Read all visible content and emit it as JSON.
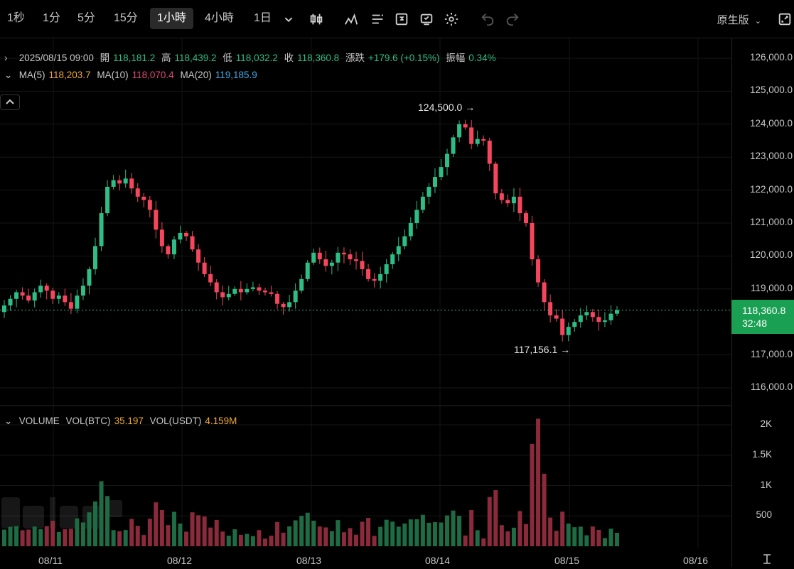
{
  "toolbar": {
    "timeframes": [
      "1秒",
      "1分",
      "5分",
      "15分",
      "1小時",
      "4小時",
      "1日"
    ],
    "active_timeframe": "1小時",
    "version_label": "原生版",
    "icons": [
      "chevron-down-icon",
      "candle-type-icon",
      "indicators-icon",
      "drawing-tools-icon",
      "replay-icon",
      "templates-icon",
      "settings-icon",
      "undo-icon",
      "redo-icon",
      "fullscreen-icon"
    ]
  },
  "ohlc_bar": {
    "datetime": "2025/08/15 09:00",
    "open_label": "開",
    "open": "118,181.2",
    "high_label": "高",
    "high": "118,439.2",
    "low_label": "低",
    "low": "118,032.2",
    "close_label": "收",
    "close": "118,360.8",
    "change_label": "漲跌",
    "change": "+179.6 (+0.15%)",
    "amplitude_label": "振幅",
    "amplitude": "0.34%"
  },
  "ma_bar": {
    "ma5_label": "MA(5)",
    "ma5": "118,203.7",
    "ma10_label": "MA(10)",
    "ma10": "118,070.4",
    "ma20_label": "MA(20)",
    "ma20": "119,185.9"
  },
  "volume_bar": {
    "title": "VOLUME",
    "vol_btc_label": "VOL(BTC)",
    "vol_btc": "35.197",
    "vol_usdt_label": "VOL(USDT)",
    "vol_usdt": "4.159M"
  },
  "current_price": {
    "price": "118,360.8",
    "countdown": "32:48"
  },
  "annotations": {
    "high_label": "124,500.0",
    "low_label": "117,156.1"
  },
  "colors": {
    "up": "#2ebd85",
    "down": "#f6465d",
    "up_volume": "#1f6b44",
    "down_volume": "#8a2a3b",
    "price_tag": "#1aa053"
  },
  "chart_data": {
    "type": "candlestick",
    "interval": "1h",
    "price_axis": {
      "ticks": [
        "126,000.0",
        "125,000.0",
        "124,000.0",
        "123,000.0",
        "122,000.0",
        "121,000.0",
        "120,000.0",
        "119,000.0",
        "117,000.0",
        "116,000.0"
      ],
      "range": [
        115500,
        126300
      ]
    },
    "volume_axis": {
      "ticks": [
        "2K",
        "1.5K",
        "1K",
        "500"
      ],
      "range": [
        0,
        2250
      ]
    },
    "x_labels": [
      "08/11",
      "08/12",
      "08/13",
      "08/14",
      "08/15",
      "08/16"
    ],
    "candles_close_path": [
      118500,
      118700,
      118900,
      118800,
      118650,
      118900,
      119100,
      118950,
      118700,
      118800,
      118600,
      118400,
      118800,
      119100,
      119600,
      120300,
      121300,
      122100,
      122300,
      122200,
      122350,
      122050,
      121800,
      121700,
      121400,
      120800,
      120300,
      120050,
      120500,
      120700,
      120600,
      120200,
      119800,
      119450,
      119200,
      118900,
      118750,
      118850,
      119000,
      118900,
      119000,
      119050,
      118950,
      118900,
      118850,
      118550,
      118450,
      118600,
      118950,
      119300,
      119800,
      120100,
      119900,
      119700,
      119800,
      120100,
      120050,
      119900,
      119850,
      119600,
      119300,
      119250,
      119450,
      119750,
      120050,
      120300,
      120600,
      121000,
      121400,
      121800,
      122100,
      122400,
      122700,
      123100,
      123600,
      124000,
      123900,
      123400,
      123550,
      123500,
      122800,
      121900,
      121700,
      121600,
      121800,
      121300,
      121000,
      119900,
      119200,
      118600,
      118200,
      118100,
      117600,
      117850,
      118000,
      118200,
      118300,
      118150,
      118000,
      118050,
      118250,
      118360.8
    ]
  }
}
